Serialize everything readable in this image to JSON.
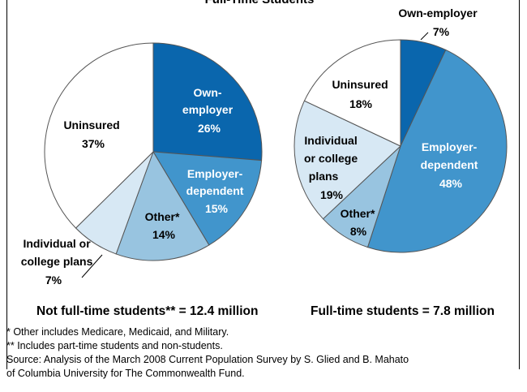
{
  "header_fragment": "Full-Time Students",
  "colors": {
    "own_employer": "#0a66ad",
    "employer_dependent": "#4195cc",
    "other": "#98c4e0",
    "individual": "#d7e8f4",
    "uninsured": "#ffffff",
    "outline": "#555555"
  },
  "chart_data": [
    {
      "type": "pie",
      "title": "Not full-time students** = 12.4 million",
      "slices": [
        {
          "label": "Own-employer",
          "value": 26,
          "display": "26%"
        },
        {
          "label": "Employer-dependent",
          "value": 15,
          "display": "15%"
        },
        {
          "label": "Other*",
          "value": 14,
          "display": "14%"
        },
        {
          "label": "Individual or college plans",
          "value": 7,
          "display": "7%"
        },
        {
          "label": "Uninsured",
          "value": 37,
          "display": "37%"
        }
      ]
    },
    {
      "type": "pie",
      "title": "Full-time students = 7.8 million",
      "slices": [
        {
          "label": "Own-employer",
          "value": 7,
          "display": "7%"
        },
        {
          "label": "Employer-dependent",
          "value": 48,
          "display": "48%"
        },
        {
          "label": "Other*",
          "value": 8,
          "display": "8%"
        },
        {
          "label": "Individual or college plans",
          "value": 19,
          "display": "19%"
        },
        {
          "label": "Uninsured",
          "value": 18,
          "display": "18%"
        }
      ]
    }
  ],
  "labels": {
    "left": {
      "own_employer": [
        "Own-",
        "employer",
        "26%"
      ],
      "employer_dependent": [
        "Employer-",
        "dependent",
        "15%"
      ],
      "other": [
        "Other*",
        "14%"
      ],
      "individual": [
        "Individual or",
        "college plans",
        "7%"
      ],
      "uninsured": [
        "Uninsured",
        "37%"
      ]
    },
    "right": {
      "own_employer": [
        "Own-employer",
        "7%"
      ],
      "employer_dependent": [
        "Employer-",
        "dependent",
        "48%"
      ],
      "other": [
        "Other*",
        "8%"
      ],
      "individual": [
        "Individual",
        "or college",
        "plans",
        "19%"
      ],
      "uninsured": [
        "Uninsured",
        "18%"
      ]
    }
  },
  "footnotes": {
    "other_note": "* Other includes Medicare, Medicaid, and Military.",
    "parttime_note": "** Includes part-time students and non-students.",
    "source_line1": "Source: Analysis of the March 2008 Current Population Survey by S. Glied and B. Mahato",
    "source_line2": "of Columbia University for The Commonwealth Fund."
  }
}
